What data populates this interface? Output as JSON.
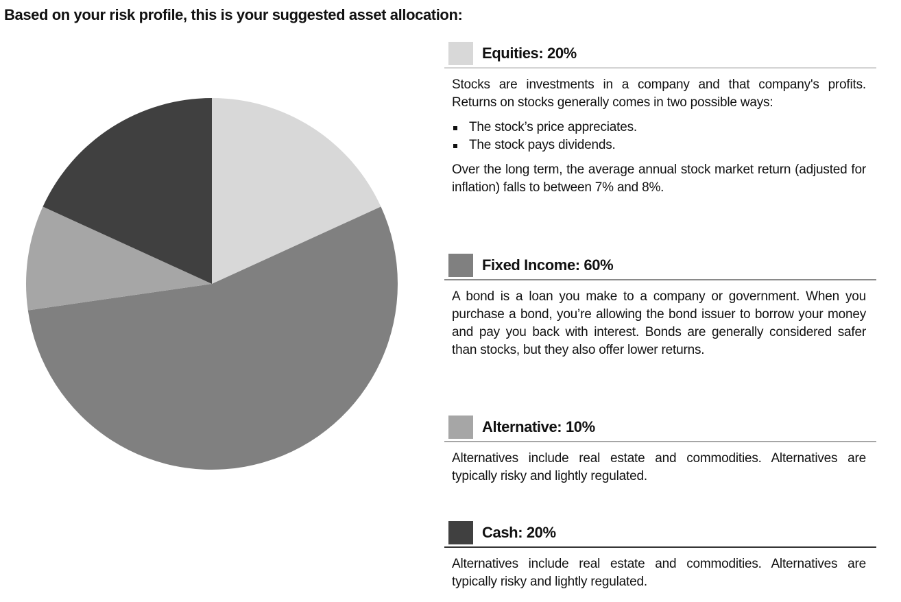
{
  "page": {
    "title": "Based on your risk profile, this is your suggested asset allocation:"
  },
  "chart_data": {
    "type": "pie",
    "title": "",
    "categories": [
      "Equities",
      "Fixed Income",
      "Alternative",
      "Cash"
    ],
    "values": [
      20,
      60,
      10,
      20
    ],
    "unit": "%",
    "colors": [
      "#d8d8d8",
      "#808080",
      "#a6a6a6",
      "#404040"
    ],
    "start_angle_deg": 0,
    "direction": "clockwise",
    "legend_position": "right"
  },
  "legend": {
    "equities": {
      "title": "Equities: 20%",
      "color": "#d8d8d8",
      "intro": "Stocks are investments in a company and that company's profits. Returns on stocks generally comes in two possible ways:",
      "bullets": [
        "The stock’s price appreciates.",
        "The stock pays dividends."
      ],
      "outro": "Over the long term, the average annual stock market return (adjusted for inflation) falls to between 7% and 8%."
    },
    "fixed_income": {
      "title": "Fixed Income: 60%",
      "color": "#808080",
      "body": "A bond is a loan you make to a company or government. When you purchase a bond, you’re allowing the bond issuer to borrow your money and pay you back with interest. Bonds are generally considered safer than stocks, but they also offer lower returns."
    },
    "alternative": {
      "title": "Alternative: 10%",
      "color": "#a6a6a6",
      "body": "Alternatives include real estate and commodities. Alternatives are typically risky and lightly regulated."
    },
    "cash": {
      "title": "Cash: 20%",
      "color": "#404040",
      "body": "Alternatives include real estate and commodities. Alternatives are typically risky and lightly regulated."
    }
  }
}
